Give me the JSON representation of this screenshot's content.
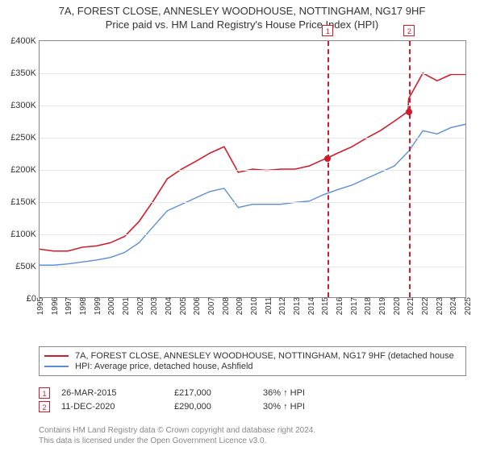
{
  "title_main": "7A, FOREST CLOSE, ANNESLEY WOODHOUSE, NOTTINGHAM, NG17 9HF",
  "title_sub": "Price paid vs. HM Land Registry's House Price Index (HPI)",
  "chart": {
    "type": "line",
    "background_color": "#ffffff",
    "grid_color": "#e8e8e8",
    "border_color": "#888888",
    "ylim": [
      0,
      400000
    ],
    "ytick_step": 50000,
    "ytick_labels": [
      "£0",
      "£50K",
      "£100K",
      "£150K",
      "£200K",
      "£250K",
      "£300K",
      "£350K",
      "£400K"
    ],
    "xlim": [
      1995,
      2025
    ],
    "xticks": [
      1995,
      1996,
      1997,
      1998,
      1999,
      2000,
      2001,
      2002,
      2003,
      2004,
      2005,
      2006,
      2007,
      2008,
      2009,
      2010,
      2011,
      2012,
      2013,
      2014,
      2015,
      2016,
      2017,
      2018,
      2019,
      2020,
      2021,
      2022,
      2023,
      2024,
      2025
    ],
    "series": [
      {
        "name": "7A, FOREST CLOSE, ANNESLEY WOODHOUSE, NOTTINGHAM, NG17 9HF (detached house",
        "color": "#d01c2a",
        "line_width": 1.6,
        "x": [
          1995,
          1996,
          1997,
          1998,
          1999,
          2000,
          2001,
          2002,
          2003,
          2004,
          2005,
          2006,
          2007,
          2008,
          2009,
          2010,
          2011,
          2012,
          2013,
          2014,
          2015,
          2015.23,
          2016,
          2017,
          2018,
          2019,
          2020,
          2020.95,
          2021,
          2022,
          2023,
          2024,
          2025
        ],
        "y": [
          75000,
          72000,
          72000,
          78000,
          80000,
          85000,
          95000,
          118000,
          150000,
          185000,
          200000,
          212000,
          225000,
          235000,
          195000,
          200000,
          198000,
          200000,
          200000,
          205000,
          215000,
          217000,
          225000,
          235000,
          248000,
          260000,
          275000,
          290000,
          310000,
          350000,
          338000,
          348000,
          348000
        ]
      },
      {
        "name": "HPI: Average price, detached house, Ashfield",
        "color": "#5a8fd6",
        "line_width": 1.4,
        "x": [
          1995,
          1996,
          1997,
          1998,
          1999,
          2000,
          2001,
          2002,
          2003,
          2004,
          2005,
          2006,
          2007,
          2008,
          2009,
          2010,
          2011,
          2012,
          2013,
          2014,
          2015,
          2016,
          2017,
          2018,
          2019,
          2020,
          2021,
          2022,
          2023,
          2024,
          2025
        ],
        "y": [
          50000,
          50000,
          52000,
          55000,
          58000,
          62000,
          70000,
          85000,
          110000,
          135000,
          145000,
          155000,
          165000,
          170000,
          140000,
          145000,
          145000,
          145000,
          148000,
          150000,
          160000,
          168000,
          175000,
          185000,
          195000,
          205000,
          228000,
          260000,
          255000,
          265000,
          270000
        ]
      }
    ],
    "markers": [
      {
        "id": "1",
        "x": 2015.23,
        "y": 217000,
        "color": "#d01c2a"
      },
      {
        "id": "2",
        "x": 2020.95,
        "y": 290000,
        "color": "#d01c2a"
      }
    ],
    "label_fontsize": 11,
    "tick_fontsize": 10
  },
  "legend": {
    "items": [
      {
        "color": "#d01c2a",
        "label": "7A, FOREST CLOSE, ANNESLEY WOODHOUSE, NOTTINGHAM, NG17 9HF (detached house"
      },
      {
        "color": "#5a8fd6",
        "label": "HPI: Average price, detached house, Ashfield"
      }
    ]
  },
  "sales": [
    {
      "id": "1",
      "date": "26-MAR-2015",
      "price": "£217,000",
      "diff": "36% ↑ HPI"
    },
    {
      "id": "2",
      "date": "11-DEC-2020",
      "price": "£290,000",
      "diff": "30% ↑ HPI"
    }
  ],
  "attribution_line1": "Contains HM Land Registry data © Crown copyright and database right 2024.",
  "attribution_line2": "This data is licensed under the Open Government Licence v3.0."
}
